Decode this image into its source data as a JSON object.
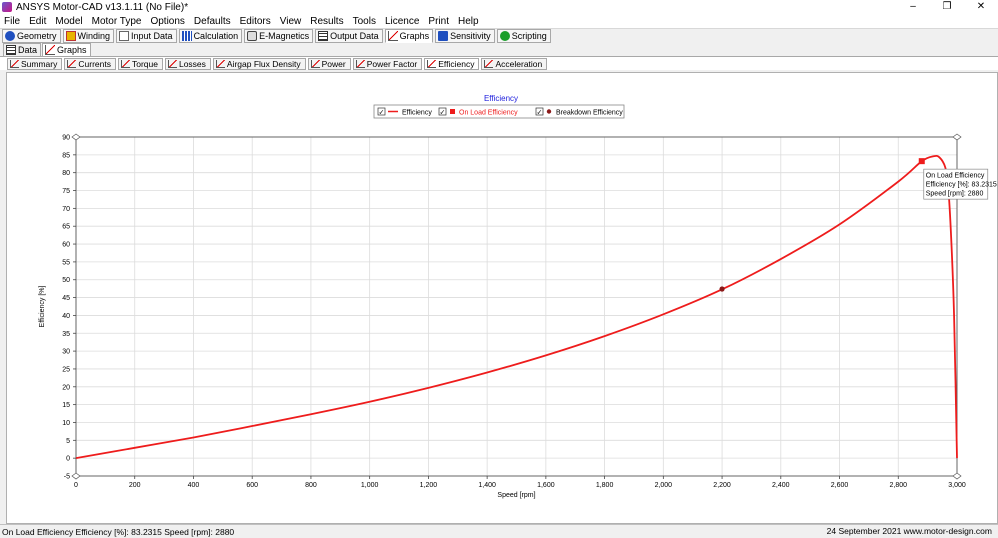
{
  "window": {
    "title": "ANSYS Motor-CAD v13.1.11 (No File)*",
    "controls": [
      "–",
      "❐",
      "✕"
    ]
  },
  "menu": [
    "File",
    "Edit",
    "Model",
    "Motor Type",
    "Options",
    "Defaults",
    "Editors",
    "View",
    "Results",
    "Tools",
    "Licence",
    "Print",
    "Help"
  ],
  "toolbar": [
    {
      "label": "Geometry",
      "icon": "geometry-icon"
    },
    {
      "label": "Winding",
      "icon": "winding-icon"
    },
    {
      "label": "Input Data",
      "icon": "input-data-icon"
    },
    {
      "label": "Calculation",
      "icon": "calculation-icon"
    },
    {
      "label": "E-Magnetics",
      "icon": "e-magnetics-icon"
    },
    {
      "label": "Output Data",
      "icon": "output-data-icon"
    },
    {
      "label": "Graphs",
      "icon": "graphs-icon",
      "active": true
    },
    {
      "label": "Sensitivity",
      "icon": "sensitivity-icon"
    },
    {
      "label": "Scripting",
      "icon": "scripting-icon"
    }
  ],
  "view_tabs": [
    {
      "label": "Data",
      "active": false
    },
    {
      "label": "Graphs",
      "active": true
    }
  ],
  "graph_tabs": [
    "Summary",
    "Currents",
    "Torque",
    "Losses",
    "Airgap Flux Density",
    "Power",
    "Power Factor",
    "Efficiency",
    "Acceleration"
  ],
  "active_graph_tab": "Efficiency",
  "colors": {
    "curve": "#ee1c1c",
    "title": "#2222dd",
    "marker_breakdown": "#8b1a1a"
  },
  "chart_data": {
    "type": "line",
    "title": "Efficiency",
    "xlabel": "Speed [rpm]",
    "ylabel": "Efficiency [%]",
    "xlim": [
      0,
      3000
    ],
    "ylim": [
      -5,
      90
    ],
    "xticks": [
      0,
      200,
      400,
      600,
      800,
      1000,
      1200,
      1400,
      1600,
      1800,
      2000,
      2200,
      2400,
      2600,
      2800,
      3000
    ],
    "xtick_labels": [
      "0",
      "200",
      "400",
      "600",
      "800",
      "1,000",
      "1,200",
      "1,400",
      "1,600",
      "1,800",
      "2,000",
      "2,200",
      "2,400",
      "2,600",
      "2,800",
      "3,000"
    ],
    "yticks": [
      -5,
      0,
      5,
      10,
      15,
      20,
      25,
      30,
      35,
      40,
      45,
      50,
      55,
      60,
      65,
      70,
      75,
      80,
      85,
      90
    ],
    "grid": true,
    "legend": {
      "placement": "top-center",
      "entries": [
        {
          "label": "Efficiency",
          "checked": "✓",
          "symbol": "line"
        },
        {
          "label": "On Load Efficiency",
          "checked": "✓",
          "symbol": "square"
        },
        {
          "label": "Breakdown Efficiency",
          "checked": "✓",
          "symbol": "circle"
        }
      ]
    },
    "series": [
      {
        "name": "Efficiency",
        "x": [
          0,
          200,
          400,
          600,
          800,
          1000,
          1200,
          1400,
          1600,
          1800,
          2000,
          2200,
          2400,
          2600,
          2800,
          2880,
          2920,
          2940,
          2960,
          2970,
          2980,
          2990,
          3000
        ],
        "y": [
          0,
          2.9,
          5.8,
          9,
          12.3,
          15.8,
          19.7,
          24,
          28.8,
          34.2,
          40.3,
          47.3,
          55.8,
          65.5,
          77.5,
          83.2,
          84.6,
          84.3,
          81.5,
          76,
          62,
          40,
          0
        ]
      }
    ],
    "markers": [
      {
        "name": "On Load Efficiency",
        "x": 2880,
        "y": 83.2315,
        "shape": "square"
      },
      {
        "name": "Breakdown Efficiency",
        "x": 2200,
        "y": 47.4,
        "shape": "circle"
      }
    ],
    "tooltip": {
      "title": "On Load Efficiency",
      "line1": "Efficiency [%]: 83.2315",
      "line2": "Speed [rpm]: 2880"
    }
  },
  "status": {
    "left": "On Load Efficiency  Efficiency [%]: 83.2315  Speed [rpm]: 2880",
    "right": "24 September 2021  www.motor-design.com"
  }
}
